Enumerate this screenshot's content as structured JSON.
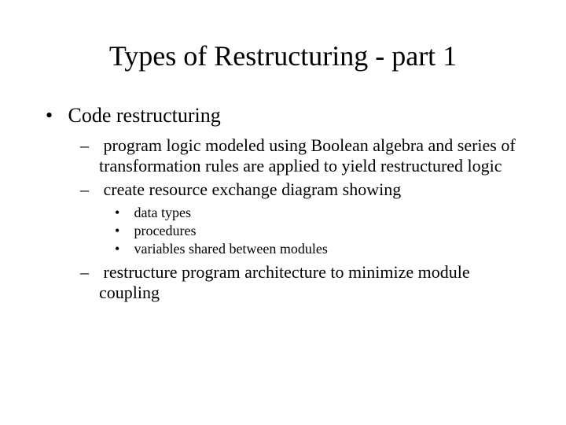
{
  "slide": {
    "title": "Types of Restructuring - part 1",
    "bullets": {
      "l1_0": "Code restructuring",
      "l2_0": "program logic modeled using Boolean algebra and series of transformation rules are applied to yield restructured logic",
      "l2_1": "create resource exchange diagram showing",
      "l3_0": "data types",
      "l3_1": "procedures",
      "l3_2": "variables shared between modules",
      "l2_2": "restructure program architecture to minimize module coupling"
    }
  },
  "style": {
    "background_color": "#ffffff",
    "text_color": "#000000",
    "font_family": "Times New Roman",
    "title_fontsize": 36,
    "l1_fontsize": 26,
    "l2_fontsize": 22,
    "l3_fontsize": 18
  }
}
